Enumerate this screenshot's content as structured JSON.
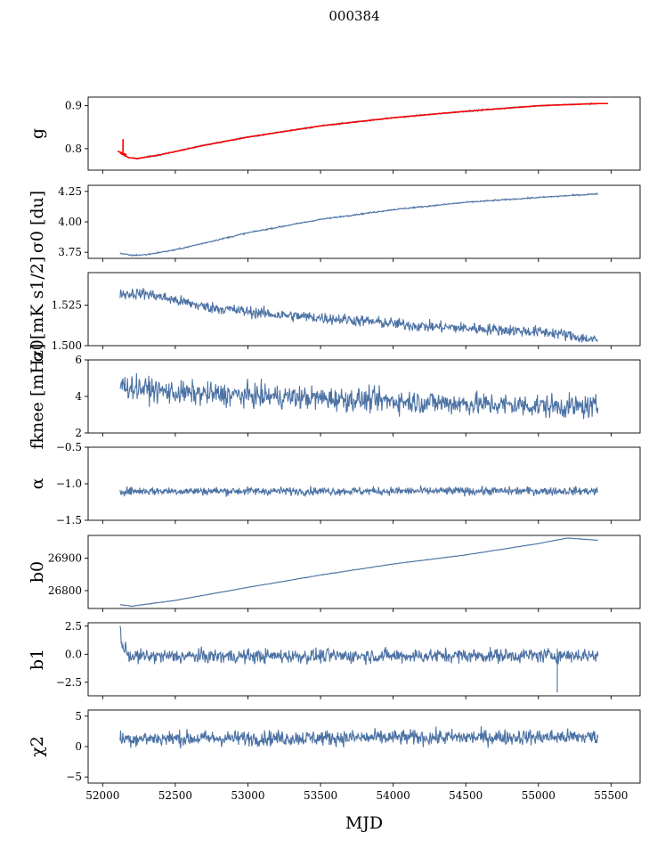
{
  "chart_data": {
    "type": "line",
    "title": "000384",
    "xlabel": "MJD",
    "xlim": [
      51900,
      55700
    ],
    "xticks": [
      52000,
      52500,
      53000,
      53500,
      54000,
      54500,
      55000,
      55500
    ],
    "x_start": 52120,
    "x_end": 55410,
    "series_color": "#4c72a4",
    "fit_color": "#ff0000",
    "panels": [
      {
        "id": "g",
        "ylabel": "g",
        "ylim": [
          0.75,
          0.92
        ],
        "yticks": [
          0.8,
          0.9
        ],
        "ytick_labels": [
          "0.8",
          "0.9"
        ],
        "trend_x": [
          52120,
          52180,
          52240,
          52400,
          52700,
          53000,
          53500,
          54000,
          54500,
          55000,
          55410
        ],
        "trend_y": [
          0.79,
          0.779,
          0.777,
          0.786,
          0.808,
          0.827,
          0.853,
          0.872,
          0.887,
          0.9,
          0.905
        ],
        "noise": 0.0012,
        "spike": {
          "x": 52140,
          "y": [
            0.79,
            0.822
          ]
        },
        "fit_extends_to": 55480
      },
      {
        "id": "sigma0_du",
        "ylabel": "σ0 [du]",
        "ylim": [
          3.7,
          4.3
        ],
        "yticks": [
          3.75,
          4.0,
          4.25
        ],
        "ytick_labels": [
          "3.75",
          "4.00",
          "4.25"
        ],
        "trend_x": [
          52120,
          52200,
          52300,
          52500,
          53000,
          53500,
          54000,
          54500,
          55000,
          55410
        ],
        "trend_y": [
          3.74,
          3.725,
          3.73,
          3.77,
          3.91,
          4.02,
          4.1,
          4.16,
          4.2,
          4.23
        ],
        "noise": 0.004
      },
      {
        "id": "sigma0_mK",
        "ylabel": "σ0[mK s1/2]",
        "ylim": [
          1.5,
          1.545
        ],
        "yticks": [
          1.5,
          1.525
        ],
        "ytick_labels": [
          "1.500",
          "1.525"
        ],
        "trend_x": [
          52120,
          52300,
          52700,
          53200,
          53700,
          54200,
          54700,
          55100,
          55410
        ],
        "trend_y": [
          1.532,
          1.532,
          1.524,
          1.519,
          1.516,
          1.512,
          1.51,
          1.508,
          1.503
        ],
        "noise": 0.0025
      },
      {
        "id": "fknee",
        "ylabel": "fknee [mHz]",
        "ylim": [
          2,
          6
        ],
        "yticks": [
          2,
          4,
          6
        ],
        "ytick_labels": [
          "2",
          "4",
          "6"
        ],
        "trend_x": [
          52120,
          52500,
          53500,
          54500,
          55410
        ],
        "trend_y": [
          4.6,
          4.2,
          3.9,
          3.6,
          3.4
        ],
        "noise": 0.45
      },
      {
        "id": "alpha",
        "ylabel": "α",
        "ylim": [
          -1.5,
          -0.5
        ],
        "yticks": [
          -1.5,
          -1.0,
          -0.5
        ],
        "ytick_labels": [
          "−1.5",
          "−1.0",
          "−0.5"
        ],
        "trend_x": [
          52120,
          55410
        ],
        "trend_y": [
          -1.1,
          -1.1
        ],
        "noise": 0.04
      },
      {
        "id": "b0",
        "ylabel": "b0",
        "ylim": [
          26745,
          26970
        ],
        "yticks": [
          26800,
          26900
        ],
        "ytick_labels": [
          "26800",
          "26900"
        ],
        "trend_x": [
          52120,
          52200,
          52500,
          53000,
          53500,
          54000,
          54500,
          55000,
          55200,
          55410
        ],
        "trend_y": [
          26757,
          26752,
          26770,
          26810,
          26848,
          26882,
          26910,
          26945,
          26962,
          26955
        ],
        "noise": 0.6
      },
      {
        "id": "b1",
        "ylabel": "b1",
        "ylim": [
          -3.7,
          2.8
        ],
        "yticks": [
          -2.5,
          0.0,
          2.5
        ],
        "ytick_labels": [
          "−2.5",
          "0.0",
          "2.5"
        ],
        "trend_x": [
          52120,
          52140,
          52200,
          55410
        ],
        "trend_y": [
          2.2,
          0.5,
          -0.2,
          -0.1
        ],
        "noise": 0.45,
        "spike": {
          "x": 55130,
          "y": [
            0.5,
            -3.4
          ]
        }
      },
      {
        "id": "chi2",
        "ylabel": "χ2",
        "ylim": [
          -6,
          6
        ],
        "yticks": [
          -5,
          0,
          5
        ],
        "ytick_labels": [
          "−5",
          "0",
          "5"
        ],
        "trend_x": [
          52120,
          55410
        ],
        "trend_y": [
          1.3,
          1.6
        ],
        "noise": 0.9
      }
    ]
  }
}
